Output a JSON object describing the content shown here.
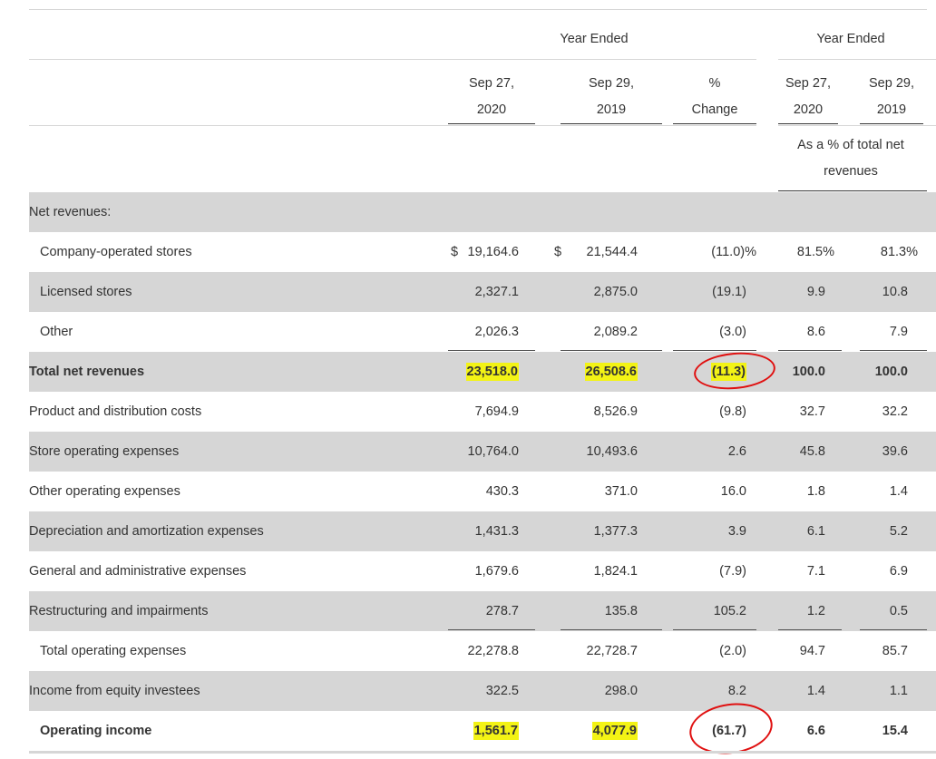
{
  "header": {
    "year_ended_left": "Year Ended",
    "year_ended_right": "Year Ended",
    "col1_l1": "Sep 27,",
    "col1_l2": "2020",
    "col2_l1": "Sep 29,",
    "col2_l2": "2019",
    "col3_l1": "%",
    "col3_l2": "Change",
    "col4_l1": "Sep 27,",
    "col4_l2": "2020",
    "col5_l1": "Sep 29,",
    "col5_l2": "2019",
    "pct_label_l1": "As a % of total net",
    "pct_label_l2": "revenues"
  },
  "rows": [
    {
      "label": "Net revenues:"
    },
    {
      "label": "Company-operated stores",
      "c1_prefix": "$",
      "c1": "19,164.6",
      "c2_prefix": "$",
      "c2": "21,544.4",
      "c3": "(11.0)%",
      "c4": "81.5%",
      "c5": "81.3%"
    },
    {
      "label": "Licensed stores",
      "c1": "2,327.1",
      "c2": "2,875.0",
      "c3": "(19.1)",
      "c4": "9.9",
      "c5": "10.8"
    },
    {
      "label": "Other",
      "c1": "2,026.3",
      "c2": "2,089.2",
      "c3": "(3.0)",
      "c4": "8.6",
      "c5": "7.9"
    },
    {
      "label": "Total net revenues",
      "c1": "23,518.0",
      "c2": "26,508.6",
      "c3": "(11.3)",
      "c4": "100.0",
      "c5": "100.0"
    },
    {
      "label": "Product and distribution costs",
      "c1": "7,694.9",
      "c2": "8,526.9",
      "c3": "(9.8)",
      "c4": "32.7",
      "c5": "32.2"
    },
    {
      "label": "Store operating expenses",
      "c1": "10,764.0",
      "c2": "10,493.6",
      "c3": "2.6",
      "c4": "45.8",
      "c5": "39.6"
    },
    {
      "label": "Other operating expenses",
      "c1": "430.3",
      "c2": "371.0",
      "c3": "16.0",
      "c4": "1.8",
      "c5": "1.4"
    },
    {
      "label": "Depreciation and amortization expenses",
      "c1": "1,431.3",
      "c2": "1,377.3",
      "c3": "3.9",
      "c4": "6.1",
      "c5": "5.2"
    },
    {
      "label": "General and administrative expenses",
      "c1": "1,679.6",
      "c2": "1,824.1",
      "c3": "(7.9)",
      "c4": "7.1",
      "c5": "6.9"
    },
    {
      "label": "Restructuring and impairments",
      "c1": "278.7",
      "c2": "135.8",
      "c3": "105.2",
      "c4": "1.2",
      "c5": "0.5"
    },
    {
      "label": "Total operating expenses",
      "c1": "22,278.8",
      "c2": "22,728.7",
      "c3": "(2.0)",
      "c4": "94.7",
      "c5": "85.7"
    },
    {
      "label": "Income from equity investees",
      "c1": "322.5",
      "c2": "298.0",
      "c3": "8.2",
      "c4": "1.4",
      "c5": "1.1"
    },
    {
      "label": "Operating income",
      "c1": "1,561.7",
      "c2": "4,077.9",
      "c3": "(61.7)",
      "c4": "6.6",
      "c5": "15.4"
    }
  ],
  "annotations": {
    "highlight_color": "#f3f315",
    "circle_color": "#e01010"
  }
}
